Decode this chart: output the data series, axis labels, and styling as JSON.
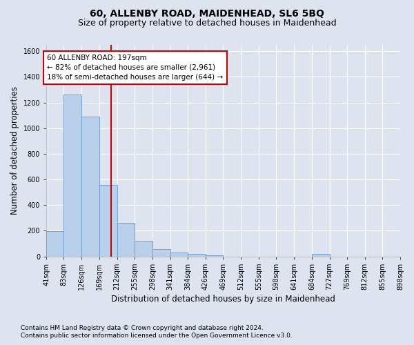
{
  "title": "60, ALLENBY ROAD, MAIDENHEAD, SL6 5BQ",
  "subtitle": "Size of property relative to detached houses in Maidenhead",
  "xlabel": "Distribution of detached houses by size in Maidenhead",
  "ylabel": "Number of detached properties",
  "footnote1": "Contains HM Land Registry data © Crown copyright and database right 2024.",
  "footnote2": "Contains public sector information licensed under the Open Government Licence v3.0.",
  "bar_edges": [
    41,
    83,
    126,
    169,
    212,
    255,
    298,
    341,
    384,
    426,
    469,
    512,
    555,
    598,
    641,
    684,
    727,
    769,
    812,
    855,
    898
  ],
  "bar_heights": [
    197,
    1265,
    1092,
    557,
    262,
    120,
    57,
    30,
    18,
    10,
    0,
    0,
    0,
    0,
    0,
    20,
    0,
    0,
    0,
    0
  ],
  "bar_color": "#b8d0ea",
  "bar_edge_color": "#6699cc",
  "vline_x": 197,
  "vline_color": "#cc0000",
  "ylim": [
    0,
    1650
  ],
  "yticks": [
    0,
    200,
    400,
    600,
    800,
    1000,
    1200,
    1400,
    1600
  ],
  "annotation_text": "60 ALLENBY ROAD: 197sqm\n← 82% of detached houses are smaller (2,961)\n18% of semi-detached houses are larger (644) →",
  "annotation_box_color": "#ffffff",
  "annotation_border_color": "#cc0000",
  "bg_color": "#dde4f0",
  "plot_bg_color": "#dde4f0",
  "grid_color": "#ffffff",
  "title_fontsize": 10,
  "subtitle_fontsize": 9,
  "tick_label_fontsize": 7,
  "ylabel_fontsize": 8.5,
  "xlabel_fontsize": 8.5,
  "annotation_fontsize": 7.5,
  "footnote_fontsize": 6.5
}
